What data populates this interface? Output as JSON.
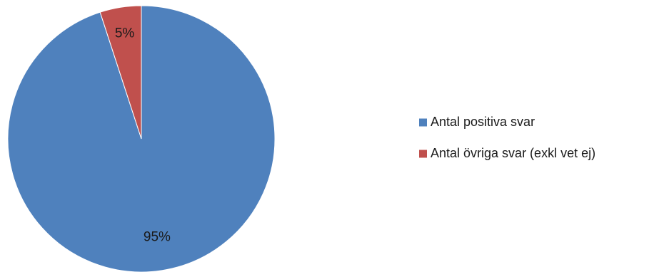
{
  "chart_data": {
    "type": "pie",
    "categories": [
      "Antal positiva svar",
      "Antal övriga svar (exkl vet ej)"
    ],
    "values": [
      95,
      5
    ],
    "data_labels": [
      "95%",
      "5%"
    ],
    "colors": [
      "#4f81bd",
      "#c0504d"
    ],
    "legend_position": "right",
    "title": ""
  }
}
